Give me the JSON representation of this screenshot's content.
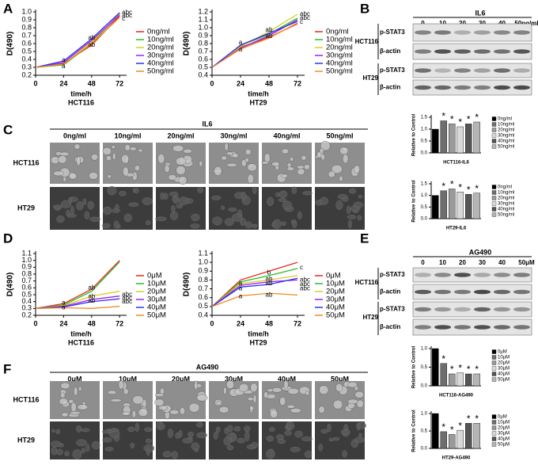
{
  "panel_labels": [
    "A",
    "B",
    "C",
    "D",
    "E",
    "F"
  ],
  "blots": [
    {
      "treatment": "IL6",
      "lanes": [
        "0",
        "10",
        "20",
        "30",
        "40",
        "50ng/ml"
      ],
      "cell_lines": [
        "HCT116",
        "HT29"
      ],
      "proteins": [
        "p-STAT3",
        "β-actin"
      ]
    },
    {
      "treatment": "AG490",
      "lanes": [
        "0",
        "10",
        "20",
        "30",
        "40",
        "50μM"
      ],
      "cell_lines": [
        "HCT116",
        "HT29"
      ],
      "proteins": [
        "p-STAT3",
        "β-actin"
      ]
    }
  ],
  "micrographs": [
    {
      "treatment": "IL6",
      "columns": [
        "0ng/ml",
        "10ng/ml",
        "20ng/ml",
        "30ng/ml",
        "40ng/ml",
        "50ng/ml"
      ],
      "rows": [
        "HCT116",
        "HT29"
      ]
    },
    {
      "treatment": "AG490",
      "columns": [
        "0μM",
        "10μM",
        "20μM",
        "30μM",
        "40μM",
        "50μM"
      ],
      "rows": [
        "HCT116",
        "HT29"
      ]
    }
  ],
  "chart_data": [
    {
      "type": "line",
      "ylabel": "D(490)",
      "xlabel": "time/h",
      "subtitle": "HCT116",
      "x": [
        0,
        24,
        48,
        72
      ],
      "xlim": [
        0,
        78
      ],
      "xticks": [
        0,
        24,
        48,
        72
      ],
      "ylim": [
        0.2,
        1.0
      ],
      "yticks": [
        0.2,
        0.3,
        0.4,
        0.5,
        0.6,
        0.7,
        0.8,
        0.9,
        {
          "value": 1.0,
          "label": "1.0"
        }
      ],
      "series": [
        {
          "name": "0ng/ml",
          "color": "#e8281e",
          "values": [
            0.3,
            0.35,
            0.58,
            0.95
          ]
        },
        {
          "name": "10ng/ml",
          "color": "#2db92d",
          "values": [
            0.3,
            0.33,
            0.6,
            0.98
          ]
        },
        {
          "name": "20ng/ml",
          "color": "#d2d21e",
          "values": [
            0.3,
            0.34,
            0.62,
            0.97
          ]
        },
        {
          "name": "30ng/ml",
          "color": "#a020f0",
          "values": [
            0.3,
            0.36,
            0.64,
            0.96
          ]
        },
        {
          "name": "40ng/ml",
          "color": "#3030f0",
          "values": [
            0.3,
            0.38,
            0.66,
            0.99
          ]
        },
        {
          "name": "50ng/ml",
          "color": "#f08c1e",
          "values": [
            0.3,
            0.34,
            0.6,
            0.93
          ]
        }
      ],
      "annotations": [
        {
          "text": "a",
          "x": 24,
          "y": 0.39
        },
        {
          "text": "a",
          "x": 24,
          "y": 0.31
        },
        {
          "text": "ab",
          "x": 48,
          "y": 0.67
        },
        {
          "text": "ab",
          "x": 48,
          "y": 0.58
        },
        {
          "text": "abc",
          "x": 72,
          "y": 0.99
        },
        {
          "text": "abc",
          "x": 72,
          "y": 0.95
        },
        {
          "text": "c",
          "x": 72,
          "y": 0.91
        }
      ]
    },
    {
      "type": "line",
      "ylabel": "D(490)",
      "xlabel": "time/h",
      "subtitle": "HT29",
      "x": [
        0,
        24,
        48,
        72
      ],
      "xlim": [
        0,
        78
      ],
      "xticks": [
        0,
        24,
        48,
        72
      ],
      "ylim": [
        0.4,
        1.2
      ],
      "yticks": [
        0.4,
        0.5,
        0.6,
        0.7,
        0.8,
        0.9,
        {
          "value": 1.0,
          "label": "1.0"
        },
        1.1,
        1.2
      ],
      "series": [
        {
          "name": "0ng/ml",
          "color": "#e8281e",
          "values": [
            0.5,
            0.75,
            0.88,
            1.05
          ]
        },
        {
          "name": "10ng/ml",
          "color": "#2db92d",
          "values": [
            0.5,
            0.77,
            0.92,
            1.12
          ]
        },
        {
          "name": "20ng/ml",
          "color": "#d2d21e",
          "values": [
            0.5,
            0.76,
            0.95,
            1.17
          ]
        },
        {
          "name": "30ng/ml",
          "color": "#a020f0",
          "values": [
            0.5,
            0.74,
            0.9,
            1.1
          ]
        },
        {
          "name": "40ng/ml",
          "color": "#3030f0",
          "values": [
            0.5,
            0.78,
            0.93,
            1.08
          ]
        },
        {
          "name": "50ng/ml",
          "color": "#f08c1e",
          "values": [
            0.5,
            0.73,
            0.87,
            1.06
          ]
        }
      ],
      "annotations": [
        {
          "text": "a",
          "x": 24,
          "y": 0.81
        },
        {
          "text": "a",
          "x": 24,
          "y": 0.72
        },
        {
          "text": "ab",
          "x": 48,
          "y": 0.97
        },
        {
          "text": "ab",
          "x": 48,
          "y": 0.89
        },
        {
          "text": "abc",
          "x": 72,
          "y": 1.17
        },
        {
          "text": "abc",
          "x": 72,
          "y": 1.12
        },
        {
          "text": "c",
          "x": 72,
          "y": 1.07
        }
      ]
    },
    {
      "type": "line",
      "ylabel": "D(490)",
      "xlabel": "time/h",
      "subtitle": "HCT116",
      "x": [
        0,
        24,
        48,
        72
      ],
      "xlim": [
        0,
        78
      ],
      "xticks": [
        0,
        24,
        48,
        72
      ],
      "ylim": [
        0.2,
        1.1
      ],
      "yticks": [
        0.2,
        0.3,
        0.4,
        0.5,
        0.6,
        0.7,
        0.8,
        0.9,
        {
          "value": 1.0,
          "label": "1.0"
        },
        1.1
      ],
      "series": [
        {
          "name": "0μM",
          "color": "#e8281e",
          "values": [
            0.3,
            0.37,
            0.58,
            1.0
          ]
        },
        {
          "name": "10μM",
          "color": "#2db92d",
          "values": [
            0.3,
            0.35,
            0.55,
            0.98
          ]
        },
        {
          "name": "20μM",
          "color": "#d2d21e",
          "values": [
            0.3,
            0.34,
            0.48,
            0.55
          ]
        },
        {
          "name": "30μM",
          "color": "#a020f0",
          "values": [
            0.3,
            0.33,
            0.43,
            0.48
          ]
        },
        {
          "name": "40μM",
          "color": "#3030f0",
          "values": [
            0.3,
            0.32,
            0.4,
            0.44
          ]
        },
        {
          "name": "50μM",
          "color": "#f08c1e",
          "values": [
            0.3,
            0.31,
            0.3,
            0.33
          ]
        }
      ],
      "annotations": [
        {
          "text": "a",
          "x": 24,
          "y": 0.38
        },
        {
          "text": "a",
          "x": 24,
          "y": 0.31
        },
        {
          "text": "ab",
          "x": 48,
          "y": 0.6
        },
        {
          "text": "ab",
          "x": 48,
          "y": 0.47
        },
        {
          "text": "ab",
          "x": 48,
          "y": 0.41
        },
        {
          "text": "abc",
          "x": 72,
          "y": 0.5
        },
        {
          "text": "abc",
          "x": 72,
          "y": 0.45
        },
        {
          "text": "abc",
          "x": 72,
          "y": 0.4
        }
      ]
    },
    {
      "type": "line",
      "ylabel": "D(490)",
      "xlabel": "time/h",
      "subtitle": "HT29",
      "x": [
        0,
        24,
        48,
        72
      ],
      "xlim": [
        0,
        78
      ],
      "xticks": [
        0,
        24,
        48,
        72
      ],
      "ylim": [
        0.4,
        1.1
      ],
      "yticks": [
        0.4,
        0.5,
        0.6,
        0.7,
        0.8,
        0.9,
        {
          "value": 1.0,
          "label": "1.0"
        },
        1.1
      ],
      "series": [
        {
          "name": "0μM",
          "color": "#e8281e",
          "values": [
            0.5,
            0.8,
            0.9,
            1.0
          ]
        },
        {
          "name": "10μM",
          "color": "#2db92d",
          "values": [
            0.5,
            0.78,
            0.85,
            0.93
          ]
        },
        {
          "name": "20μM",
          "color": "#d2d21e",
          "values": [
            0.5,
            0.76,
            0.8,
            0.85
          ]
        },
        {
          "name": "30μM",
          "color": "#a020f0",
          "values": [
            0.5,
            0.74,
            0.78,
            0.8
          ]
        },
        {
          "name": "40μM",
          "color": "#3030f0",
          "values": [
            0.5,
            0.72,
            0.75,
            0.82
          ]
        },
        {
          "name": "50μM",
          "color": "#f08c1e",
          "values": [
            0.5,
            0.62,
            0.65,
            0.63
          ]
        }
      ],
      "annotations": [
        {
          "text": "a",
          "x": 24,
          "y": 0.76
        },
        {
          "text": "a",
          "x": 24,
          "y": 0.7
        },
        {
          "text": "a",
          "x": 24,
          "y": 0.61
        },
        {
          "text": "b",
          "x": 48,
          "y": 0.88
        },
        {
          "text": "ab",
          "x": 48,
          "y": 0.81
        },
        {
          "text": "ab",
          "x": 48,
          "y": 0.76
        },
        {
          "text": "ab",
          "x": 48,
          "y": 0.63
        },
        {
          "text": "c",
          "x": 72,
          "y": 0.94
        },
        {
          "text": "abc",
          "x": 72,
          "y": 0.8
        },
        {
          "text": "abc",
          "x": 72,
          "y": 0.75
        },
        {
          "text": "abc",
          "x": 72,
          "y": 0.7
        }
      ]
    },
    {
      "type": "bar",
      "ylabel": "Relative to Control",
      "title": "HCT116-IL6",
      "ylim": [
        0,
        1.5
      ],
      "yticks": [
        {
          "value": 0,
          "label": "0.0"
        },
        {
          "value": 0.5,
          "label": "0.5"
        },
        {
          "value": 1.0,
          "label": "1.0"
        },
        {
          "value": 1.5,
          "label": "1.5"
        }
      ],
      "series": [
        {
          "name": "0ng/ml",
          "color": "#000000",
          "values": [
            1.0
          ]
        },
        {
          "name": "10ng/ml",
          "color": "#6e6e6e",
          "values": [
            1.35
          ],
          "annotation": "*"
        },
        {
          "name": "20ng/ml",
          "color": "#9a9a9a",
          "values": [
            1.22
          ],
          "annotation": "*"
        },
        {
          "name": "30ng/ml",
          "color": "#d8d8d8",
          "values": [
            1.1
          ],
          "annotation": "*"
        },
        {
          "name": "40ng/ml",
          "color": "#555555",
          "values": [
            1.22
          ],
          "annotation": "*"
        },
        {
          "name": "50ng/ml",
          "color": "#b5b5b5",
          "values": [
            1.3
          ],
          "annotation": "*"
        }
      ]
    },
    {
      "type": "bar",
      "ylabel": "Relative to Control",
      "title": "HT29-IL6",
      "ylim": [
        0,
        1.5
      ],
      "yticks": [
        {
          "value": 0,
          "label": "0.0"
        },
        {
          "value": 0.5,
          "label": "0.5"
        },
        {
          "value": 1.0,
          "label": "1.0"
        },
        {
          "value": 1.5,
          "label": "1.5"
        }
      ],
      "series": [
        {
          "name": "0ng/ml",
          "color": "#000000",
          "values": [
            1.0
          ]
        },
        {
          "name": "10ng/ml",
          "color": "#6e6e6e",
          "values": [
            1.2
          ],
          "annotation": "*"
        },
        {
          "name": "20ng/ml",
          "color": "#9a9a9a",
          "values": [
            1.28
          ],
          "annotation": "*"
        },
        {
          "name": "30ng/ml",
          "color": "#d8d8d8",
          "values": [
            1.15
          ],
          "annotation": "*"
        },
        {
          "name": "40ng/ml",
          "color": "#555555",
          "values": [
            1.05
          ],
          "annotation": "*"
        },
        {
          "name": "50ng/ml",
          "color": "#b5b5b5",
          "values": [
            1.1
          ],
          "annotation": "*"
        }
      ]
    },
    {
      "type": "bar",
      "ylabel": "Relative to Control",
      "title": "HCT116-AG490",
      "ylim": [
        0,
        1.0
      ],
      "yticks": [
        {
          "value": 0,
          "label": "0.0"
        },
        {
          "value": 0.5,
          "label": "0.5"
        },
        {
          "value": 1.0,
          "label": "1.0"
        }
      ],
      "series": [
        {
          "name": "0μM",
          "color": "#000000",
          "values": [
            1.0
          ]
        },
        {
          "name": "10μM",
          "color": "#6e6e6e",
          "values": [
            0.6
          ],
          "annotation": "*"
        },
        {
          "name": "20μM",
          "color": "#9a9a9a",
          "values": [
            0.32
          ],
          "annotation": "*"
        },
        {
          "name": "30μM",
          "color": "#d8d8d8",
          "values": [
            0.35
          ],
          "annotation": "*"
        },
        {
          "name": "40μM",
          "color": "#555555",
          "values": [
            0.32
          ],
          "annotation": "*"
        },
        {
          "name": "50μM",
          "color": "#b5b5b5",
          "values": [
            0.32
          ],
          "annotation": "*"
        }
      ]
    },
    {
      "type": "bar",
      "ylabel": "Relative to Control",
      "title": "HT29-AG490",
      "ylim": [
        0,
        1.0
      ],
      "yticks": [
        {
          "value": 0,
          "label": "0.0"
        },
        {
          "value": 0.5,
          "label": "0.5"
        },
        {
          "value": 1.0,
          "label": "1.0"
        }
      ],
      "series": [
        {
          "name": "0μM",
          "color": "#000000",
          "values": [
            1.0
          ]
        },
        {
          "name": "10μM",
          "color": "#6e6e6e",
          "values": [
            0.48
          ],
          "annotation": "*"
        },
        {
          "name": "20μM",
          "color": "#9a9a9a",
          "values": [
            0.4
          ],
          "annotation": "*"
        },
        {
          "name": "30μM",
          "color": "#d8d8d8",
          "values": [
            0.52
          ],
          "annotation": "*"
        },
        {
          "name": "40μM",
          "color": "#555555",
          "values": [
            0.72
          ],
          "annotation": "*"
        },
        {
          "name": "50μM",
          "color": "#b5b5b5",
          "values": [
            0.72
          ],
          "annotation": "*"
        }
      ]
    }
  ]
}
